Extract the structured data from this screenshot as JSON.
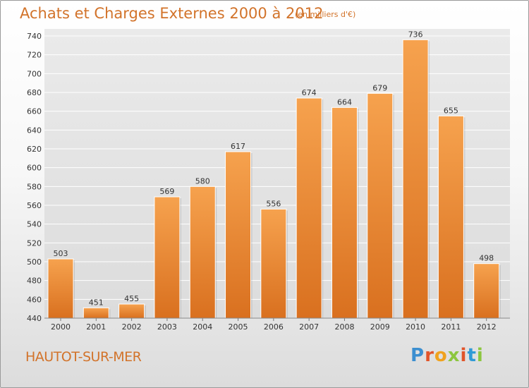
{
  "title": "Achats et Charges Externes 2000 à 2012",
  "subtitle": "(en milliers d'€)",
  "location": "HAUTOT-SUR-MER",
  "logo_text": "Proxiti",
  "colors": {
    "bar": "#f0913a",
    "bar_dark": "#d9701f",
    "title": "#d2732a",
    "grid": "#ffffff"
  },
  "chart_data": {
    "type": "bar",
    "title": "Achats et Charges Externes 2000 à 2012",
    "subtitle": "(en milliers d'€)",
    "categories": [
      "2000",
      "2001",
      "2002",
      "2003",
      "2004",
      "2005",
      "2006",
      "2007",
      "2008",
      "2009",
      "2010",
      "2011",
      "2012"
    ],
    "values": [
      503,
      451,
      455,
      569,
      580,
      617,
      556,
      674,
      664,
      679,
      736,
      655,
      498
    ],
    "ylim": [
      440,
      740
    ],
    "yticks": [
      440,
      460,
      480,
      500,
      520,
      540,
      560,
      580,
      600,
      620,
      640,
      660,
      680,
      700,
      720,
      740
    ],
    "grid": true,
    "xlabel": "",
    "ylabel": ""
  }
}
